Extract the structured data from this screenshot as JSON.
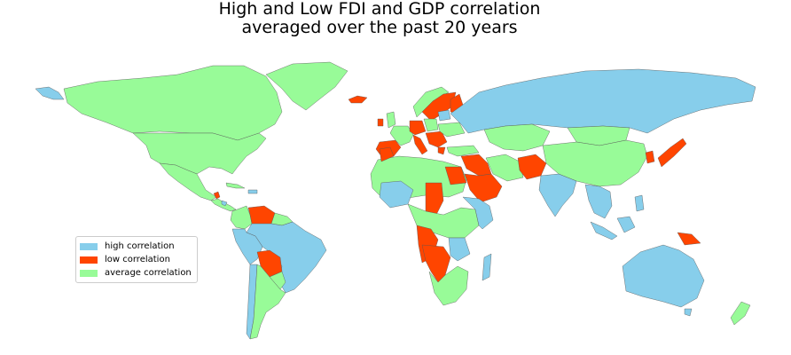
{
  "title": {
    "line1": "High and Low FDI and GDP correlation",
    "line2": "averaged over the past 20 years"
  },
  "colors": {
    "high": "#87CEEB",
    "low": "#FF4500",
    "average": "#98FB98",
    "border": "#555555"
  },
  "legend": {
    "items": [
      {
        "key": "high",
        "label": "high correlation"
      },
      {
        "key": "low",
        "label": "low correlation"
      },
      {
        "key": "average",
        "label": "average correlation"
      }
    ]
  }
}
